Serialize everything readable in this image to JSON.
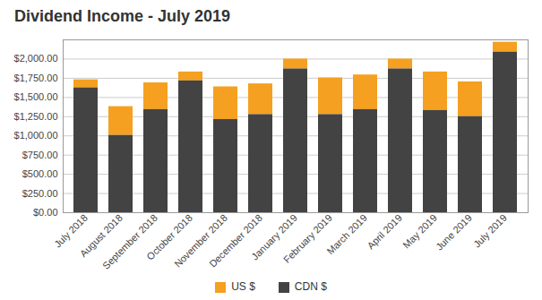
{
  "chart_data": {
    "type": "bar",
    "title": "Dividend Income - July 2019",
    "categories": [
      "July 2018",
      "August 2018",
      "September 2018",
      "October 2018",
      "November 2018",
      "December 2018",
      "January 2019",
      "February 2019",
      "March 2019",
      "April 2019",
      "May 2019",
      "June 2019",
      "July 2019"
    ],
    "series": [
      {
        "name": "US $",
        "color": "#f5a020",
        "values": [
          105,
          375,
          348,
          116,
          425,
          400,
          129,
          478,
          451,
          129,
          502,
          452,
          129
        ]
      },
      {
        "name": "CDN $",
        "color": "#434343",
        "values": [
          1625,
          1006,
          1342,
          1716,
          1213,
          1277,
          1871,
          1277,
          1342,
          1871,
          1330,
          1251,
          2090
        ]
      }
    ],
    "stacked": true,
    "ylim": [
      0,
      2250
    ],
    "yticks": [
      {
        "value": 0,
        "label": "$0.00"
      },
      {
        "value": 250,
        "label": "$250.00"
      },
      {
        "value": 500,
        "label": "$500.00"
      },
      {
        "value": 750,
        "label": "$750.00"
      },
      {
        "value": 1000,
        "label": "$1,000.00"
      },
      {
        "value": 1250,
        "label": "$1,250.00"
      },
      {
        "value": 1500,
        "label": "$1,500.00"
      },
      {
        "value": 1750,
        "label": "$1,750.00"
      },
      {
        "value": 2000,
        "label": "$2,000.00"
      }
    ],
    "grid": true,
    "legend": "bottom"
  }
}
